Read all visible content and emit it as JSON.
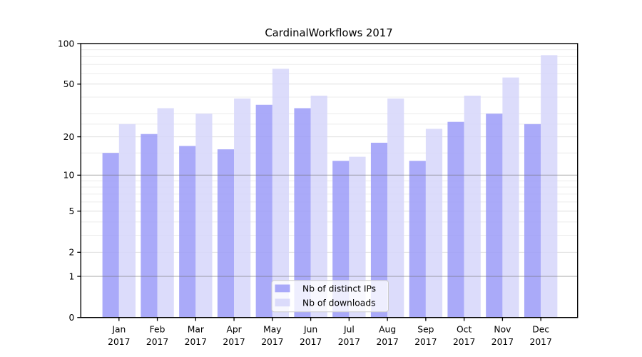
{
  "title": "CardinalWorkflows 2017",
  "chart_data": {
    "type": "bar",
    "title": "CardinalWorkflows 2017",
    "xlabel": "",
    "ylabel": "",
    "year_label": "2017",
    "categories": [
      "Jan",
      "Feb",
      "Mar",
      "Apr",
      "May",
      "Jun",
      "Jul",
      "Aug",
      "Sep",
      "Oct",
      "Nov",
      "Dec"
    ],
    "series": [
      {
        "name": "Nb of distinct IPs",
        "color": "#9b9bf8",
        "values": [
          15,
          21,
          17,
          16,
          35,
          33,
          13,
          18,
          13,
          26,
          30,
          25
        ]
      },
      {
        "name": "Nb of downloads",
        "color": "#d6d6fa",
        "values": [
          25,
          33,
          30,
          39,
          65,
          41,
          14,
          39,
          23,
          41,
          56,
          82
        ]
      }
    ],
    "y_scale": "log10(1+x)",
    "ylim": [
      0,
      100
    ],
    "y_ticks": [
      0,
      1,
      2,
      5,
      10,
      20,
      50,
      100
    ],
    "y_gridlines_minor": [
      3,
      4,
      6,
      7,
      8,
      9,
      15,
      25,
      30,
      40,
      60,
      70,
      80,
      90
    ],
    "y_gridlines_major_light": [
      2,
      5,
      20,
      50
    ],
    "y_gridlines_emphasis": [
      1,
      10
    ],
    "grid": true,
    "legend_position": "bottom-center"
  },
  "colors": {
    "bar_dark": "#9b9bf8",
    "bar_light": "#d6d6fa",
    "grid_minor": "#ececec",
    "grid_major": "#dfdfdf",
    "grid_emphasis": "#6e6e6e",
    "frame": "#000000",
    "legend_border": "#cccccc",
    "legend_bg": "#ffffff"
  }
}
